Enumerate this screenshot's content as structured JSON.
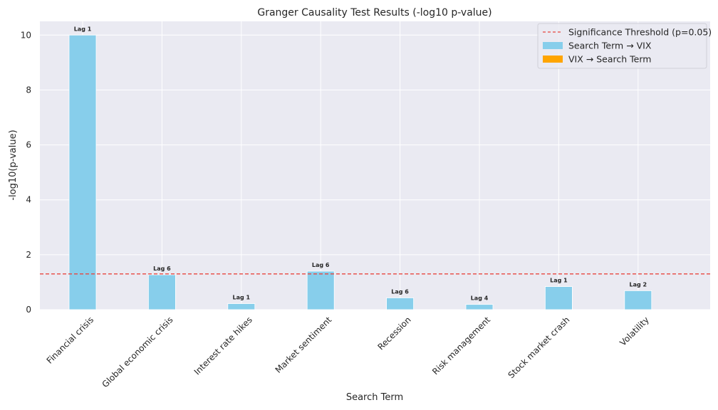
{
  "chart_data": {
    "type": "bar",
    "title": "Granger Causality Test Results (-log10 p-value)",
    "xlabel": "Search Term",
    "ylabel": "-log10(p-value)",
    "categories": [
      "Financial crisis",
      "Global economic crisis",
      "Interest rate hikes",
      "Market sentiment",
      "Recession",
      "Risk management",
      "Stock market crash",
      "Volatility"
    ],
    "series": [
      {
        "name": "Search Term → VIX",
        "color": "#87CEEB",
        "values": [
          10.0,
          1.27,
          0.22,
          1.4,
          0.43,
          0.19,
          0.84,
          0.69
        ],
        "labels": [
          "Lag 1",
          "Lag 6",
          "Lag 1",
          "Lag 6",
          "Lag 6",
          "Lag 4",
          "Lag 1",
          "Lag 2"
        ]
      },
      {
        "name": "VIX → Search Term",
        "color": "#FFA500",
        "values": [
          0,
          0,
          0,
          0,
          0,
          0,
          0,
          0
        ]
      }
    ],
    "threshold": {
      "name": "Significance Threshold (p=0.05)",
      "value": 1.301,
      "color": "#E8463F"
    },
    "yticks": [
      0,
      2,
      4,
      6,
      8,
      10
    ],
    "ylim": [
      0,
      10.5
    ],
    "grid": true,
    "legend_position": "top-right",
    "background": "#EAEAF2"
  }
}
